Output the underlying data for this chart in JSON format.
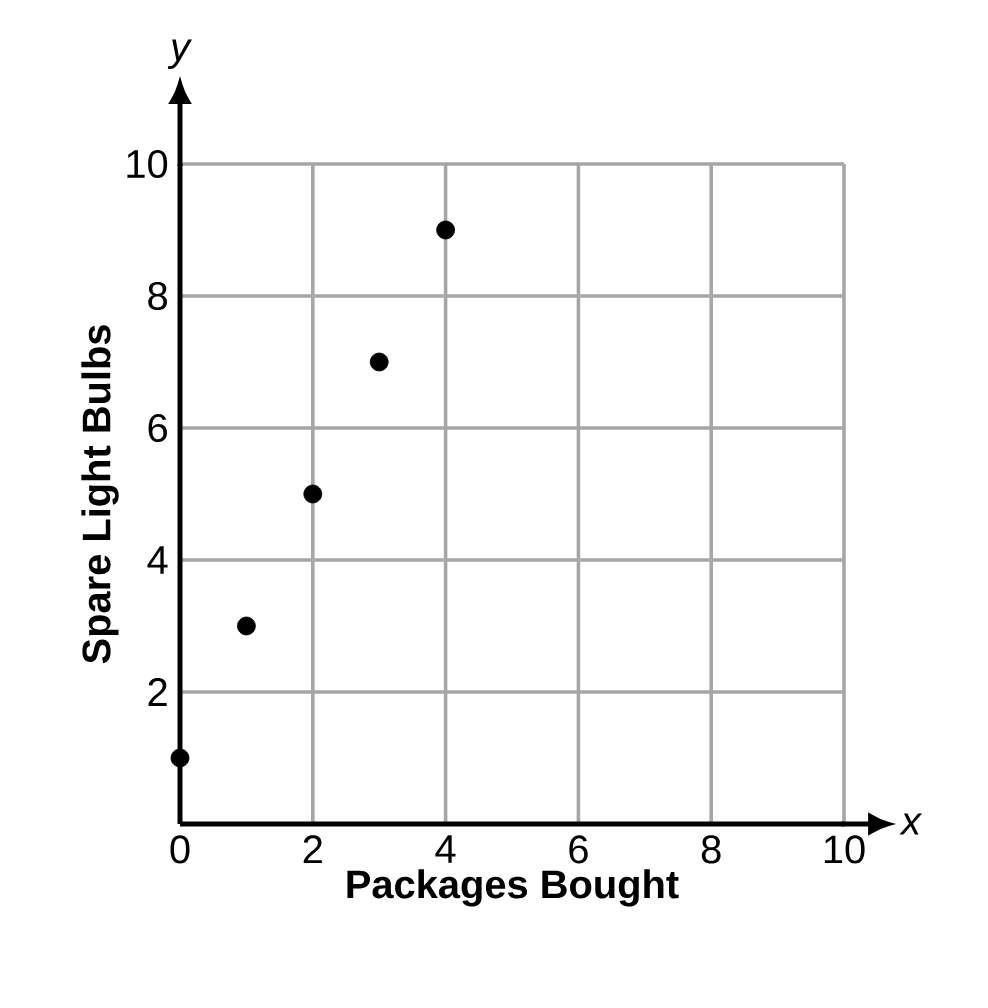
{
  "chart_data": {
    "type": "scatter",
    "xlabel": "Packages Bought",
    "ylabel": "Spare Light Bulbs",
    "annotations": [
      "x",
      "y"
    ],
    "x": [
      0,
      1,
      2,
      3,
      4
    ],
    "series": [
      {
        "color": "#000000",
        "values": [
          1,
          3,
          5,
          7,
          9
        ]
      }
    ],
    "xlim": [
      0,
      10
    ],
    "ylim": [
      0,
      10
    ],
    "xticks": [
      0,
      2,
      4,
      6,
      8,
      10
    ],
    "yticks": [
      2,
      4,
      6,
      8,
      10
    ],
    "grid": true,
    "marker": "circle"
  }
}
